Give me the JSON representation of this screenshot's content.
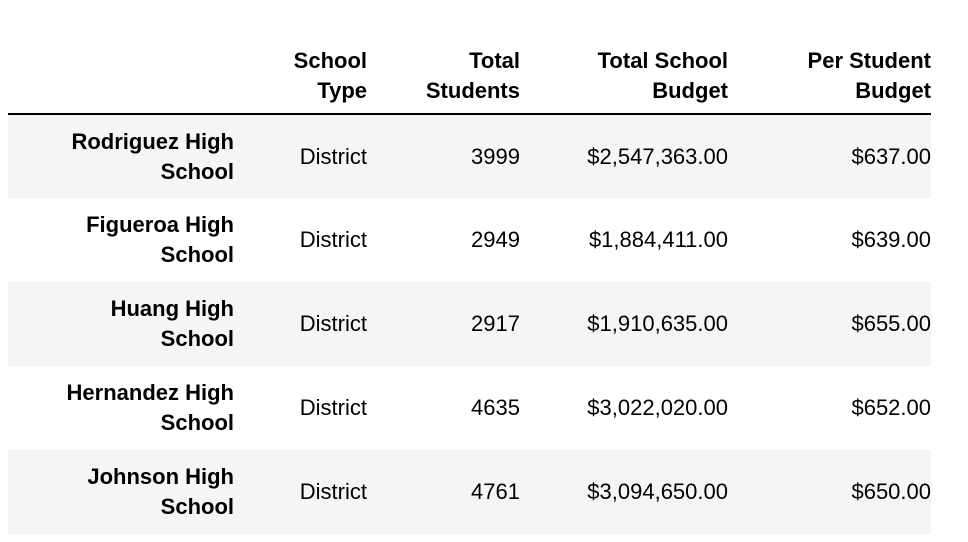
{
  "table": {
    "columns": [
      {
        "label": "",
        "key": "index"
      },
      {
        "label": "School\nType",
        "lines": [
          "School",
          "Type"
        ]
      },
      {
        "label": "Total\nStudents",
        "lines": [
          "Total",
          "Students"
        ]
      },
      {
        "label": "Total School\nBudget",
        "lines": [
          "Total School",
          "Budget"
        ]
      },
      {
        "label": "Per Student\nBudget",
        "lines": [
          "Per Student",
          "Budget"
        ]
      }
    ],
    "rows": [
      {
        "name_lines": [
          "Rodriguez High",
          "School"
        ],
        "type": "District",
        "students": "3999",
        "budget": "$2,547,363.00",
        "per_student": "$637.00"
      },
      {
        "name_lines": [
          "Figueroa High",
          "School"
        ],
        "type": "District",
        "students": "2949",
        "budget": "$1,884,411.00",
        "per_student": "$639.00"
      },
      {
        "name_lines": [
          "Huang High",
          "School"
        ],
        "type": "District",
        "students": "2917",
        "budget": "$1,910,635.00",
        "per_student": "$655.00"
      },
      {
        "name_lines": [
          "Hernandez High",
          "School"
        ],
        "type": "District",
        "students": "4635",
        "budget": "$3,022,020.00",
        "per_student": "$652.00"
      },
      {
        "name_lines": [
          "Johnson High",
          "School"
        ],
        "type": "District",
        "students": "4761",
        "budget": "$3,094,650.00",
        "per_student": "$650.00"
      }
    ]
  },
  "colors": {
    "row_stripe": "#f5f5f5",
    "header_rule": "#000000"
  }
}
